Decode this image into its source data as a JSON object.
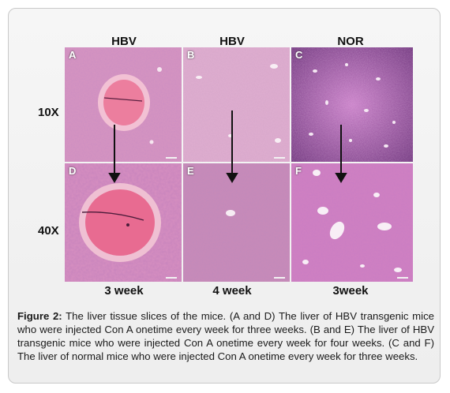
{
  "columns": [
    "HBV",
    "HBV",
    "NOR"
  ],
  "rows": [
    "10X",
    "40X"
  ],
  "weeks": [
    "3 week",
    "4 week",
    "3week"
  ],
  "panels": [
    "A",
    "B",
    "C",
    "D",
    "E",
    "F"
  ],
  "caption": {
    "label": "Figure 2:",
    "text": " The liver tissue slices of the mice. (A and D) The liver of HBV transgenic mice who were injected Con A onetime every week for three weeks. (B and E) The liver of HBV transgenic mice who were injected Con A onetime every week for four weeks. (C and F) The liver of normal mice who were injected Con A onetime every week for three weeks."
  },
  "colors": {
    "tissue_pink": "#d98bbd",
    "tissue_light": "#e8b0d0",
    "tissue_purple": "#b964b4",
    "vessel_red": "#e85a84",
    "arrow": "#111111"
  }
}
